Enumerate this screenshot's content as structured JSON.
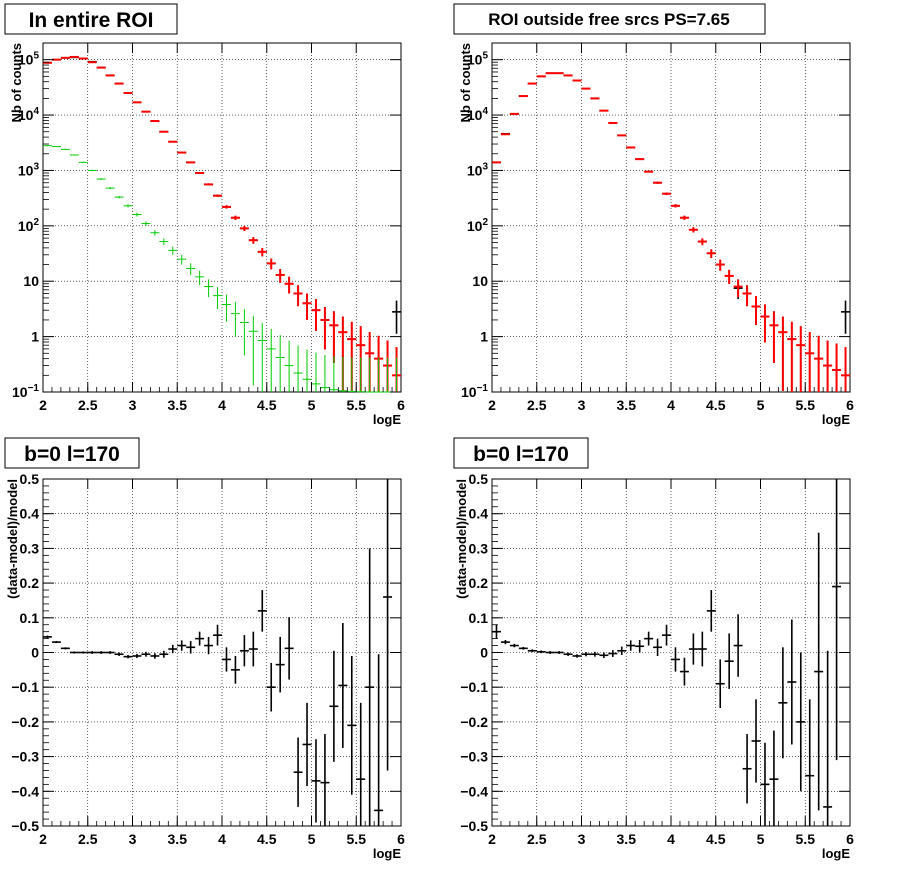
{
  "panels": [
    {
      "title": "In entire ROI",
      "xlabel": "logE",
      "ylabel": "Nb of counts",
      "chart_data": {
        "type": "scatter",
        "subtype": "histogram-errorbars",
        "yscale": "log",
        "xlim": [
          2,
          6
        ],
        "ylim": [
          0.1,
          200000
        ],
        "x_ticks": [
          "2",
          "2.5",
          "3",
          "3.5",
          "4",
          "4.5",
          "5",
          "5.5",
          "6"
        ],
        "y_ticks": [
          "10^-1",
          "1",
          "10",
          "10^2",
          "10^3",
          "10^4",
          "10^5"
        ],
        "grid": true,
        "series": [
          {
            "role": "data",
            "color": "#000000",
            "x": [
              2.05,
              2.15,
              2.25,
              2.35,
              2.45,
              2.55,
              2.65,
              2.75,
              2.85,
              2.95,
              3.05,
              3.15,
              3.25,
              3.35,
              3.45,
              3.55,
              3.65,
              3.75,
              3.85,
              3.95,
              4.05,
              4.15,
              4.25,
              4.35,
              4.45,
              4.55,
              4.65,
              4.75,
              4.85,
              4.95,
              5.05,
              5.15,
              5.25,
              5.35,
              5.45,
              5.55,
              5.65,
              5.75,
              5.85,
              5.95
            ],
            "y": [
              88000,
              100000,
              108000,
              110000,
              105000,
              92000,
              72000,
              52000,
              37000,
              25000,
              17000,
              11500,
              7800,
              5000,
              3300,
              2100,
              1400,
              900,
              560,
              350,
              220,
              140,
              90,
              55,
              34,
              21,
              13,
              9,
              6,
              4,
              3,
              2,
              1.6,
              1.2,
              0.9,
              0.7,
              0.5,
              0.4,
              0.3,
              2.8
            ]
          },
          {
            "role": "model",
            "color": "#ff0000",
            "x": [
              2.05,
              2.15,
              2.25,
              2.35,
              2.45,
              2.55,
              2.65,
              2.75,
              2.85,
              2.95,
              3.05,
              3.15,
              3.25,
              3.35,
              3.45,
              3.55,
              3.65,
              3.75,
              3.85,
              3.95,
              4.05,
              4.15,
              4.25,
              4.35,
              4.45,
              4.55,
              4.65,
              4.75,
              4.85,
              4.95,
              5.05,
              5.15,
              5.25,
              5.35,
              5.45,
              5.55,
              5.65,
              5.75,
              5.85,
              5.95
            ],
            "y": [
              88000,
              100000,
              108000,
              112000,
              105000,
              90000,
              72000,
              52000,
              37000,
              25000,
              17000,
              11500,
              7800,
              5000,
              3300,
              2100,
              1400,
              900,
              560,
              350,
              220,
              140,
              90,
              55,
              34,
              21,
              13,
              9,
              6,
              4,
              3,
              2,
              1.6,
              1.2,
              0.9,
              0.7,
              0.5,
              0.4,
              0.3,
              0.2
            ]
          },
          {
            "role": "component",
            "color": "#00cc00",
            "x": [
              2.05,
              2.15,
              2.25,
              2.35,
              2.45,
              2.55,
              2.65,
              2.75,
              2.85,
              2.95,
              3.05,
              3.15,
              3.25,
              3.35,
              3.45,
              3.55,
              3.65,
              3.75,
              3.85,
              3.95,
              4.05,
              4.15,
              4.25,
              4.35,
              4.45,
              4.55,
              4.65,
              4.75,
              4.85,
              4.95,
              5.05,
              5.15,
              5.25,
              5.35,
              5.45,
              5.55,
              5.65,
              5.75,
              5.85,
              5.95
            ],
            "y": [
              2800,
              2700,
              2400,
              1900,
              1400,
              1000,
              700,
              480,
              330,
              230,
              160,
              110,
              75,
              52,
              36,
              25,
              17,
              12,
              8,
              5.5,
              3.8,
              2.6,
              1.8,
              1.25,
              0.85,
              0.6,
              0.42,
              0.3,
              0.22,
              0.17,
              0.14,
              0.12,
              0.11,
              0.105,
              0.102,
              0.101,
              0.1,
              0.1,
              0.1,
              0.1
            ]
          }
        ]
      }
    },
    {
      "title": "ROI outside free srcs PS=7.65",
      "xlabel": "logE",
      "ylabel": "Nb of counts",
      "chart_data": {
        "type": "scatter",
        "subtype": "histogram-errorbars",
        "yscale": "log",
        "xlim": [
          2,
          6
        ],
        "ylim": [
          0.1,
          200000
        ],
        "x_ticks": [
          "2",
          "2.5",
          "3",
          "3.5",
          "4",
          "4.5",
          "5",
          "5.5",
          "6"
        ],
        "y_ticks": [
          "10^-1",
          "1",
          "10",
          "10^2",
          "10^3",
          "10^4",
          "10^5"
        ],
        "grid": true,
        "series": [
          {
            "role": "data",
            "color": "#000000",
            "x": [
              2.05,
              2.15,
              2.25,
              2.35,
              2.45,
              2.55,
              2.65,
              2.75,
              2.85,
              2.95,
              3.05,
              3.15,
              3.25,
              3.35,
              3.45,
              3.55,
              3.65,
              3.75,
              3.85,
              3.95,
              4.05,
              4.15,
              4.25,
              4.35,
              4.45,
              4.55,
              4.65,
              4.75,
              4.85,
              4.95,
              5.05,
              5.15,
              5.25,
              5.35,
              5.45,
              5.55,
              5.65,
              5.75,
              5.85,
              5.95
            ],
            "y": [
              1400,
              4600,
              10500,
              22000,
              37000,
              50000,
              57000,
              57000,
              52000,
              42000,
              30000,
              20000,
              12000,
              7200,
              4300,
              2600,
              1600,
              950,
              600,
              380,
              230,
              140,
              85,
              52,
              32,
              20,
              12.5,
              7.5,
              6,
              3.5,
              2.3,
              1.6,
              1.2,
              0.9,
              0.7,
              0.5,
              0.4,
              0.3,
              0.25,
              2.8
            ]
          },
          {
            "role": "model",
            "color": "#ff0000",
            "x": [
              2.05,
              2.15,
              2.25,
              2.35,
              2.45,
              2.55,
              2.65,
              2.75,
              2.85,
              2.95,
              3.05,
              3.15,
              3.25,
              3.35,
              3.45,
              3.55,
              3.65,
              3.75,
              3.85,
              3.95,
              4.05,
              4.15,
              4.25,
              4.35,
              4.45,
              4.55,
              4.65,
              4.75,
              4.85,
              4.95,
              5.05,
              5.15,
              5.25,
              5.35,
              5.45,
              5.55,
              5.65,
              5.75,
              5.85,
              5.95
            ],
            "y": [
              1400,
              4500,
              10500,
              22000,
              37000,
              50000,
              57000,
              57000,
              52000,
              42000,
              30000,
              20000,
              12000,
              7200,
              4300,
              2600,
              1600,
              950,
              600,
              380,
              230,
              140,
              85,
              52,
              32,
              20,
              12.5,
              8,
              6,
              3.5,
              2.3,
              1.6,
              1.2,
              0.9,
              0.7,
              0.5,
              0.4,
              0.3,
              0.25,
              0.2
            ]
          }
        ]
      }
    },
    {
      "title": "b=0 l=170",
      "xlabel": "logE",
      "ylabel": "(data-model)/model",
      "chart_data": {
        "type": "scatter",
        "subtype": "residual-errorbars",
        "xlim": [
          2,
          6
        ],
        "ylim": [
          -0.5,
          0.5
        ],
        "x_ticks": [
          "2",
          "2.5",
          "3",
          "3.5",
          "4",
          "4.5",
          "5",
          "5.5",
          "6"
        ],
        "y_ticks": [
          "−0.5",
          "−0.4",
          "−0.3",
          "−0.2",
          "−0.1",
          "0",
          "0.1",
          "0.2",
          "0.3",
          "0.4",
          "0.5"
        ],
        "grid": true,
        "series": [
          {
            "role": "residual",
            "color": "#000000",
            "x": [
              2.05,
              2.15,
              2.25,
              2.35,
              2.45,
              2.55,
              2.65,
              2.75,
              2.85,
              2.95,
              3.05,
              3.15,
              3.25,
              3.35,
              3.45,
              3.55,
              3.65,
              3.75,
              3.85,
              3.95,
              4.05,
              4.15,
              4.25,
              4.35,
              4.45,
              4.55,
              4.65,
              4.75,
              4.85,
              4.95,
              5.05,
              5.15,
              5.25,
              5.35,
              5.45,
              5.55,
              5.65,
              5.75,
              5.85
            ],
            "y": [
              0.045,
              0.03,
              0.012,
              0.0,
              0.0,
              0.0,
              0.0,
              0.0,
              -0.005,
              -0.012,
              -0.01,
              -0.005,
              -0.01,
              -0.005,
              0.01,
              0.02,
              0.015,
              0.04,
              0.02,
              0.05,
              -0.02,
              -0.05,
              0.005,
              0.01,
              0.12,
              -0.1,
              -0.035,
              0.012,
              -0.345,
              -0.265,
              -0.37,
              -0.375,
              -0.155,
              -0.095,
              -0.21,
              -0.365,
              -0.1,
              -0.455,
              0.16
            ],
            "err": [
              0.004,
              0.003,
              0.003,
              0.003,
              0.003,
              0.004,
              0.004,
              0.004,
              0.005,
              0.005,
              0.006,
              0.007,
              0.008,
              0.01,
              0.012,
              0.015,
              0.018,
              0.02,
              0.025,
              0.03,
              0.035,
              0.04,
              0.045,
              0.05,
              0.06,
              0.07,
              0.08,
              0.09,
              0.1,
              0.12,
              0.12,
              0.14,
              0.16,
              0.18,
              0.2,
              0.22,
              0.4,
              0.45,
              0.5
            ]
          }
        ]
      }
    },
    {
      "title": "b=0 l=170",
      "xlabel": "logE",
      "ylabel": "(data-model)/model",
      "chart_data": {
        "type": "scatter",
        "subtype": "residual-errorbars",
        "xlim": [
          2,
          6
        ],
        "ylim": [
          -0.5,
          0.5
        ],
        "x_ticks": [
          "2",
          "2.5",
          "3",
          "3.5",
          "4",
          "4.5",
          "5",
          "5.5",
          "6"
        ],
        "y_ticks": [
          "−0.5",
          "−0.4",
          "−0.3",
          "−0.2",
          "−0.1",
          "0",
          "0.1",
          "0.2",
          "0.3",
          "0.4",
          "0.5"
        ],
        "grid": true,
        "series": [
          {
            "role": "residual",
            "color": "#000000",
            "x": [
              2.05,
              2.15,
              2.25,
              2.35,
              2.45,
              2.55,
              2.65,
              2.75,
              2.85,
              2.95,
              3.05,
              3.15,
              3.25,
              3.35,
              3.45,
              3.55,
              3.65,
              3.75,
              3.85,
              3.95,
              4.05,
              4.15,
              4.25,
              4.35,
              4.45,
              4.55,
              4.65,
              4.75,
              4.85,
              4.95,
              5.05,
              5.15,
              5.25,
              5.35,
              5.45,
              5.55,
              5.65,
              5.75,
              5.85
            ],
            "y": [
              0.06,
              0.03,
              0.02,
              0.012,
              0.005,
              0.002,
              0.0,
              0.0,
              -0.005,
              -0.01,
              -0.005,
              -0.005,
              -0.008,
              -0.003,
              0.005,
              0.02,
              0.018,
              0.04,
              0.015,
              0.05,
              -0.02,
              -0.055,
              0.01,
              0.01,
              0.12,
              -0.09,
              -0.025,
              0.02,
              -0.335,
              -0.255,
              -0.38,
              -0.365,
              -0.145,
              -0.085,
              -0.2,
              -0.355,
              -0.055,
              -0.445,
              0.19
            ],
            "err": [
              0.02,
              0.006,
              0.005,
              0.004,
              0.004,
              0.004,
              0.004,
              0.004,
              0.005,
              0.005,
              0.006,
              0.007,
              0.008,
              0.01,
              0.012,
              0.015,
              0.018,
              0.02,
              0.025,
              0.03,
              0.035,
              0.04,
              0.045,
              0.05,
              0.06,
              0.07,
              0.08,
              0.09,
              0.1,
              0.12,
              0.12,
              0.14,
              0.16,
              0.18,
              0.2,
              0.22,
              0.4,
              0.45,
              0.5
            ]
          }
        ]
      }
    }
  ]
}
